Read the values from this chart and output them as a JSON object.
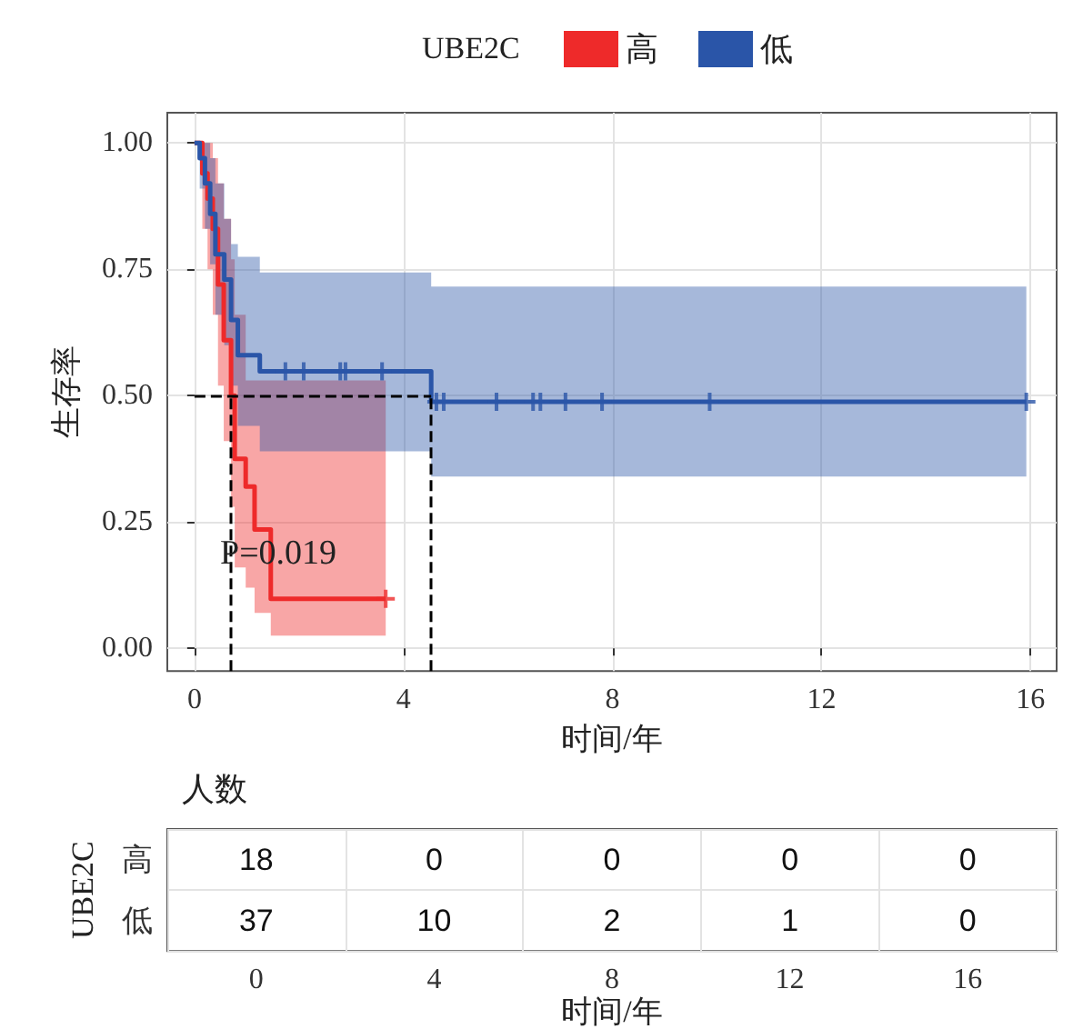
{
  "chart_data": [
    {
      "type": "step",
      "legend_title": "UBE2C",
      "xlabel": "时间/年",
      "ylabel": "生存率",
      "legend": "top",
      "grid": true,
      "xlim": [
        -0.52,
        16.5
      ],
      "xticks": [
        0,
        4,
        8,
        12,
        16
      ],
      "ylim": [
        -0.045,
        1.06
      ],
      "yticks": [
        {
          "value": 0,
          "label": "0.00"
        },
        {
          "value": 0.25,
          "label": "0.25"
        },
        {
          "value": 0.5,
          "label": "0.50"
        },
        {
          "value": 0.75,
          "label": "0.75"
        },
        {
          "value": 1,
          "label": "1.00"
        }
      ],
      "annotations": [
        "P=0.019"
      ],
      "ref_lines": [
        {
          "axis": "y",
          "value": 0.5,
          "line_style": "dashed",
          "color": "#000000"
        },
        {
          "axis": "x",
          "value": 0.7,
          "line_style": "dashed",
          "color": "#000000"
        },
        {
          "axis": "x",
          "value": 4.53,
          "line_style": "dashed",
          "color": "#000000"
        }
      ],
      "series": [
        {
          "name": "高",
          "type": "step",
          "color": "#ee2a2a",
          "x": [
            0,
            0.15,
            0.25,
            0.35,
            0.45,
            0.56,
            0.7,
            0.77,
            0.98,
            1.15,
            1.46,
            3.66
          ],
          "values": [
            1,
            0.94,
            0.89,
            0.83,
            0.72,
            0.61,
            0.5,
            0.375,
            0.32,
            0.235,
            0.098,
            0.098
          ],
          "upper": [
            1,
            1,
            1,
            0.97,
            0.92,
            0.85,
            0.77,
            0.66,
            0.53,
            0.53,
            0.53,
            0.53
          ],
          "lower": [
            1,
            0.83,
            0.75,
            0.66,
            0.52,
            0.41,
            0.28,
            0.16,
            0.12,
            0.07,
            0.025,
            0.025
          ]
        },
        {
          "name": "低",
          "type": "step",
          "color": "#2a55a8",
          "x": [
            0,
            0.1,
            0.2,
            0.3,
            0.4,
            0.57,
            0.7,
            0.83,
            1.25,
            4.53,
            15.92
          ],
          "values": [
            1,
            0.97,
            0.92,
            0.86,
            0.78,
            0.73,
            0.65,
            0.58,
            0.548,
            0.488,
            0.488
          ],
          "upper": [
            1,
            1,
            1,
            0.97,
            0.92,
            0.85,
            0.8,
            0.775,
            0.744,
            0.716,
            0.716
          ],
          "lower": [
            1,
            0.91,
            0.83,
            0.76,
            0.66,
            0.6,
            0.52,
            0.44,
            0.39,
            0.34,
            0.34
          ]
        },
        {
          "type": "scatter",
          "marker": "cross",
          "color": "#ee2a2a",
          "x": [
            3.66
          ],
          "values": [
            0.098
          ]
        },
        {
          "type": "scatter",
          "marker": "cross",
          "color": "#2a55a8",
          "x": [
            1.74,
            2.09,
            2.79,
            2.89,
            3.59,
            4.63,
            4.77,
            5.78,
            6.48,
            6.62,
            7.1,
            7.8,
            9.86,
            15.92
          ],
          "values": [
            0.548,
            0.548,
            0.548,
            0.548,
            0.548,
            0.488,
            0.488,
            0.488,
            0.488,
            0.488,
            0.488,
            0.488,
            0.488,
            0.488
          ]
        }
      ]
    },
    {
      "type": "heatmap",
      "title": "人数",
      "xlabel": "时间/年",
      "ylabel": "UBE2C",
      "grid": true,
      "categories": [
        "0",
        "4",
        "8",
        "12",
        "16"
      ],
      "y_categories": [
        "高",
        "低"
      ],
      "data_labels": true,
      "cells": [
        [
          18,
          0,
          0,
          0,
          0
        ],
        [
          37,
          10,
          2,
          1,
          0
        ]
      ]
    }
  ]
}
